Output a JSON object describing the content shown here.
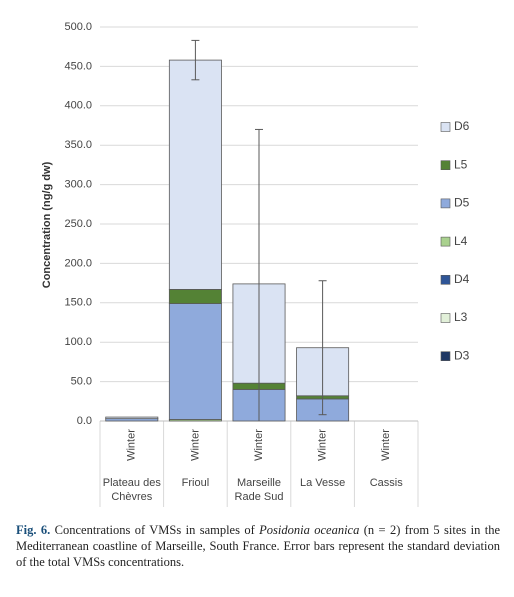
{
  "chart_data": {
    "type": "bar",
    "stacked": true,
    "y_label": "Concentration (ng/g dw)",
    "categories": [
      "Winter",
      "Winter",
      "Winter",
      "Winter",
      "Winter"
    ],
    "groups": [
      [
        "Plateau des",
        "Chèvres"
      ],
      [
        "Frioul"
      ],
      [
        "Marseille",
        "Rade Sud"
      ],
      [
        "La Vesse"
      ],
      [
        "Cassis"
      ]
    ],
    "series": [
      {
        "name": "D3",
        "color": "#1f3864",
        "values": [
          0,
          0,
          0,
          0,
          0
        ]
      },
      {
        "name": "L3",
        "color": "#e2f0d9",
        "values": [
          0,
          0,
          0,
          0,
          0
        ]
      },
      {
        "name": "D4",
        "color": "#2f5597",
        "values": [
          0,
          0,
          0,
          0,
          0
        ]
      },
      {
        "name": "L4",
        "color": "#a9d18e",
        "values": [
          0,
          2,
          0,
          0,
          0
        ]
      },
      {
        "name": "D5",
        "color": "#8faadc",
        "values": [
          3,
          147,
          40,
          28,
          0
        ]
      },
      {
        "name": "L5",
        "color": "#548235",
        "values": [
          0,
          18,
          8,
          4,
          0
        ]
      },
      {
        "name": "D6",
        "color": "#dae3f3",
        "values": [
          2,
          291,
          126,
          61,
          0
        ]
      }
    ],
    "errors": [
      null,
      25,
      196,
      85,
      null
    ],
    "ylim": [
      0,
      500
    ],
    "yticks": [
      {
        "value": 0,
        "label": "0.0"
      },
      {
        "value": 50,
        "label": "50.0"
      },
      {
        "value": 100,
        "label": "100.0"
      },
      {
        "value": 150,
        "label": "150.0"
      },
      {
        "value": 200,
        "label": "200.0"
      },
      {
        "value": 250,
        "label": "250.0"
      },
      {
        "value": 300,
        "label": "300.0"
      },
      {
        "value": 350,
        "label": "350.0"
      },
      {
        "value": 400,
        "label": "400.0"
      },
      {
        "value": 450,
        "label": "450.0"
      },
      {
        "value": 500,
        "label": "500.0"
      }
    ],
    "grid": true,
    "legend": "right"
  },
  "caption": {
    "label": "Fig. 6.",
    "parts": [
      "Concentrations of VMSs in samples of ",
      "Posidonia oceanica",
      " (n = 2) from 5 sites in the Mediterranean coastline of Marseille, South France. Error bars represent the standard deviation of the total VMSs concentrations."
    ]
  }
}
